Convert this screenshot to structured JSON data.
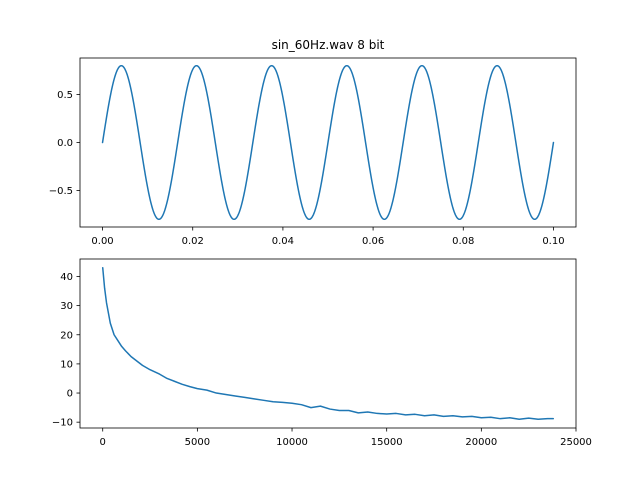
{
  "chart_data": [
    {
      "type": "line",
      "title": "sin_60Hz.wav 8 bit",
      "xlabel": "",
      "ylabel": "",
      "xlim": [
        -0.005,
        0.105
      ],
      "ylim": [
        -0.88,
        0.88
      ],
      "x_ticks": [
        0.0,
        0.02,
        0.04,
        0.06,
        0.08,
        0.1
      ],
      "x_tick_labels": [
        "0.00",
        "0.02",
        "0.04",
        "0.06",
        "0.08",
        "0.10"
      ],
      "y_ticks": [
        0.5,
        0.0,
        -0.5
      ],
      "y_tick_labels": [
        "0.5",
        "0.0",
        "−0.5"
      ],
      "grid": false,
      "color": "#1f77b4",
      "series": [
        {
          "function": "0.8*sin(2*pi*60*t)",
          "amplitude": 0.8,
          "frequency_hz": 60,
          "t_start": 0.0,
          "t_end": 0.1
        }
      ]
    },
    {
      "type": "line",
      "title": "",
      "xlabel": "",
      "ylabel": "",
      "xlim": [
        -1200,
        25000
      ],
      "ylim": [
        -12,
        46
      ],
      "x_ticks": [
        0,
        5000,
        10000,
        15000,
        20000,
        25000
      ],
      "x_tick_labels": [
        "0",
        "5000",
        "10000",
        "15000",
        "20000",
        "25000"
      ],
      "y_ticks": [
        40,
        30,
        20,
        10,
        0,
        -10
      ],
      "y_tick_labels": [
        "40",
        "30",
        "20",
        "10",
        "0",
        "−10"
      ],
      "grid": false,
      "color": "#1f77b4",
      "series": [
        {
          "x": [
            0,
            100,
            200,
            400,
            600,
            800,
            1000,
            1200,
            1500,
            1800,
            2100,
            2500,
            3000,
            3400,
            3800,
            4200,
            4600,
            5000,
            5500,
            6000,
            6500,
            7000,
            7500,
            8000,
            8500,
            9000,
            9500,
            10000,
            10500,
            11000,
            11500,
            12000,
            12500,
            13000,
            13500,
            14000,
            14500,
            15000,
            15500,
            16000,
            16500,
            17000,
            17500,
            18000,
            18500,
            19000,
            19500,
            20000,
            20500,
            21000,
            21500,
            22000,
            22500,
            23000,
            23500,
            23800
          ],
          "y": [
            43,
            36,
            31,
            24,
            20,
            18,
            16,
            14.5,
            12.5,
            11,
            9.5,
            8,
            6.5,
            5,
            4,
            3,
            2.2,
            1.5,
            1,
            0,
            -0.5,
            -1,
            -1.5,
            -2,
            -2.5,
            -3,
            -3.2,
            -3.5,
            -4,
            -5,
            -4.5,
            -5.5,
            -6,
            -6,
            -6.8,
            -6.5,
            -7,
            -7.2,
            -7,
            -7.5,
            -7.3,
            -7.8,
            -7.5,
            -8,
            -7.8,
            -8.2,
            -8,
            -8.5,
            -8.3,
            -8.8,
            -8.5,
            -9,
            -8.6,
            -9,
            -8.8,
            -8.8
          ]
        }
      ]
    }
  ]
}
